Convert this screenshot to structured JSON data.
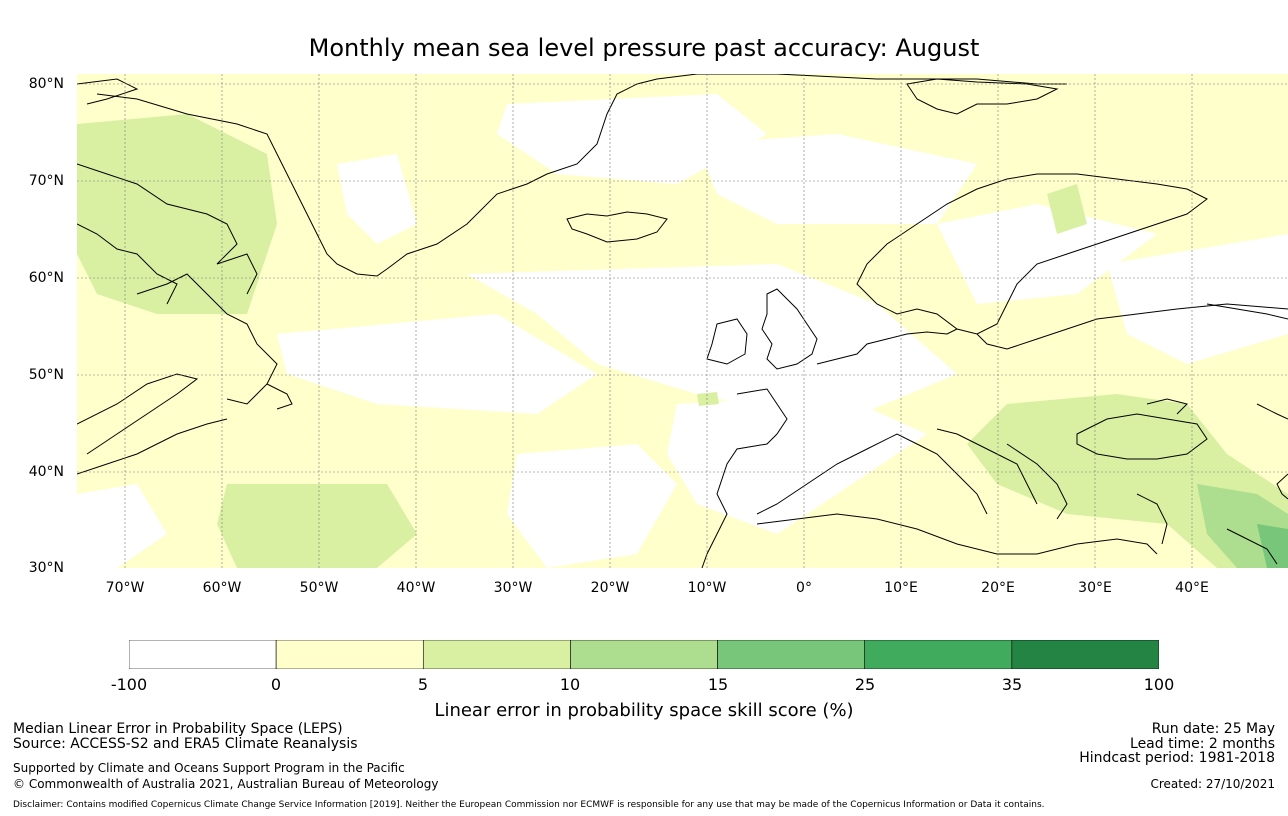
{
  "title": "Monthly mean sea level pressure past accuracy: August",
  "lat_labels": [
    "80°N",
    "70°N",
    "60°N",
    "50°N",
    "40°N",
    "30°N"
  ],
  "lon_labels": [
    "70°W",
    "60°W",
    "50°W",
    "40°W",
    "30°W",
    "20°W",
    "10°W",
    "0°",
    "10°E",
    "20°E",
    "30°E",
    "40°E"
  ],
  "colorbar": {
    "tick_labels": [
      "-100",
      "0",
      "5",
      "10",
      "15",
      "25",
      "35",
      "100"
    ],
    "colors": [
      "#ffffff",
      "#ffffcc",
      "#d9f0a3",
      "#addd8e",
      "#78c679",
      "#41ab5d",
      "#238443"
    ],
    "label": "Linear error in probability space skill score (%)"
  },
  "info_left": {
    "line1": "Median Linear Error in Probability Space (LEPS)",
    "line2": "Source: ACCESS-S2 and ERA5 Climate Reanalysis",
    "line3": "Supported by Climate and Oceans Support Program in the Pacific",
    "line4": "© Commonwealth of Australia 2021, Australian Bureau of Meteorology"
  },
  "info_right": {
    "run_date": "Run date: 25 May",
    "lead_time": "Lead time: 2 months",
    "hindcast": "Hindcast period: 1981-2018",
    "created": "Created: 27/10/2021"
  },
  "disclaimer": "Disclaimer: Contains modified Copernicus Climate Change Service Information [2019]. Neither the European Commission nor ECMWF is responsible for any use that may be made of the Copernicus Information or Data it contains."
}
